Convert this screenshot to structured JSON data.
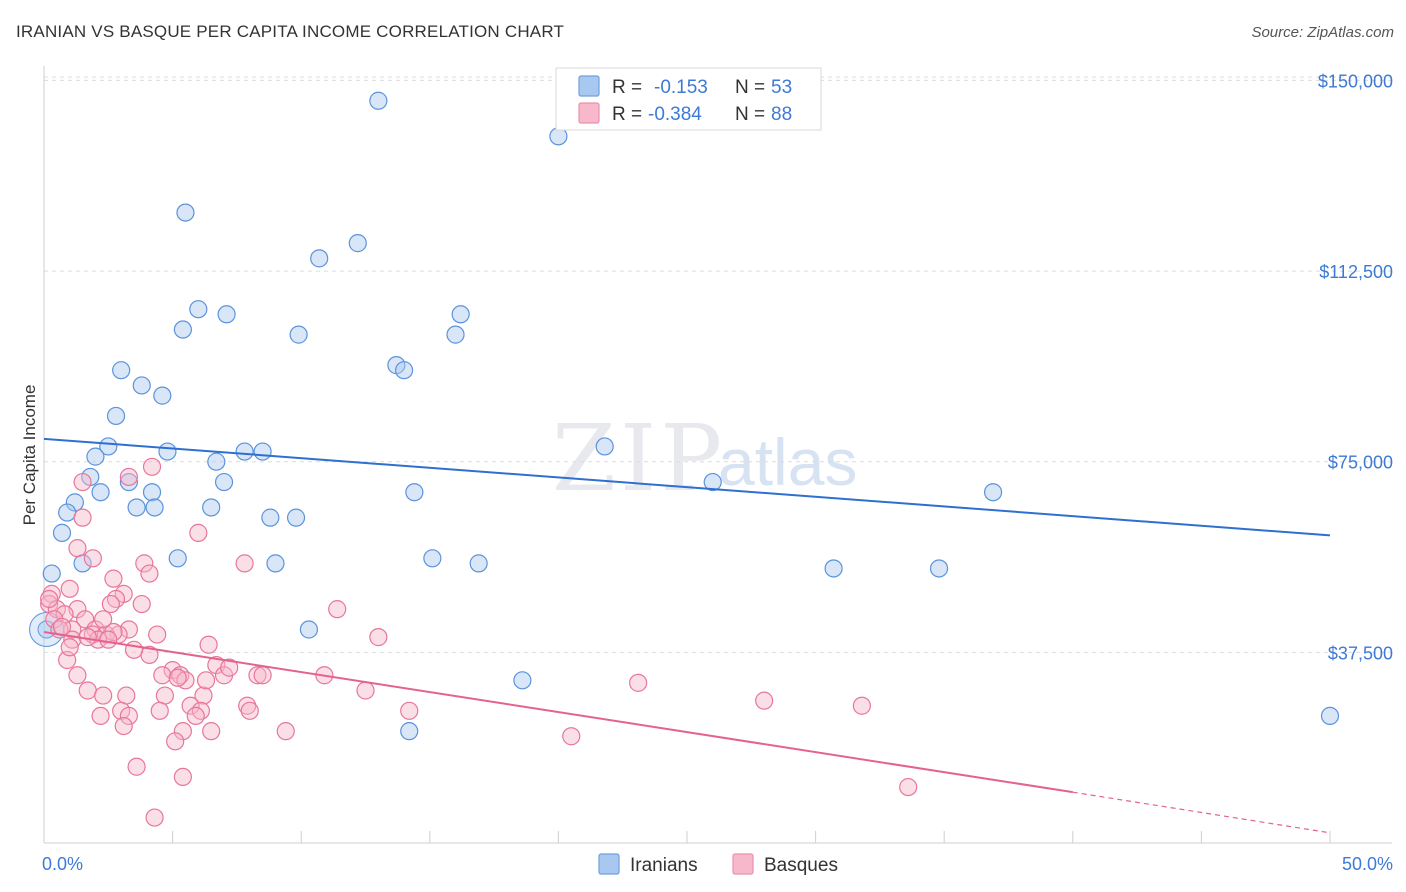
{
  "header": {
    "title": "IRANIAN VS BASQUE PER CAPITA INCOME CORRELATION CHART",
    "source": "Source: ZipAtlas.com"
  },
  "watermark": {
    "part1": "ZIP",
    "part2": "atlas"
  },
  "legend": {
    "r_label": "R =",
    "n_label": "N =",
    "rows": [
      {
        "series": "Iranians",
        "r": "-0.153",
        "n": "53",
        "color": "#a9c8f0"
      },
      {
        "series": "Basques",
        "r": "-0.384",
        "n": "88",
        "color": "#f6b8ca"
      }
    ]
  },
  "chart_data": {
    "type": "scatter",
    "title": "IRANIAN VS BASQUE PER CAPITA INCOME CORRELATION CHART",
    "ylabel": "Per Capita Income",
    "xlabel": "",
    "xlim": [
      0,
      50
    ],
    "ylim": [
      0,
      155000
    ],
    "x_tick_labels": [
      "0.0%",
      "50.0%"
    ],
    "y_ticks": [
      37500,
      75000,
      112500,
      150000
    ],
    "y_tick_labels": [
      "$37,500",
      "$75,000",
      "$112,500",
      "$150,000"
    ],
    "grid": "horizontal dashed",
    "legend_position": "top-center",
    "colors": {
      "Iranians": "#5b93dc",
      "Basques": "#e8769c",
      "iran_line": "#2f6fd0",
      "basque_line": "#e4628f"
    },
    "series": [
      {
        "name": "Iranians",
        "points": [
          [
            13.0,
            146000
          ],
          [
            20.0,
            139000
          ],
          [
            5.5,
            124000
          ],
          [
            10.7,
            115000
          ],
          [
            12.2,
            118000
          ],
          [
            6.0,
            105000
          ],
          [
            7.1,
            104000
          ],
          [
            5.4,
            101000
          ],
          [
            9.9,
            100000
          ],
          [
            16.2,
            104000
          ],
          [
            16.0,
            100000
          ],
          [
            3.0,
            93000
          ],
          [
            13.7,
            94000
          ],
          [
            14.0,
            93000
          ],
          [
            3.8,
            90000
          ],
          [
            4.6,
            88000
          ],
          [
            2.8,
            84000
          ],
          [
            2.5,
            78000
          ],
          [
            4.8,
            77000
          ],
          [
            7.8,
            77000
          ],
          [
            8.5,
            77000
          ],
          [
            2.0,
            76000
          ],
          [
            6.7,
            75000
          ],
          [
            1.8,
            72000
          ],
          [
            3.3,
            71000
          ],
          [
            7.0,
            71000
          ],
          [
            2.2,
            69000
          ],
          [
            4.2,
            69000
          ],
          [
            14.4,
            69000
          ],
          [
            21.8,
            78000
          ],
          [
            26.0,
            71000
          ],
          [
            36.9,
            69000
          ],
          [
            1.2,
            67000
          ],
          [
            3.6,
            66000
          ],
          [
            4.3,
            66000
          ],
          [
            6.5,
            66000
          ],
          [
            0.9,
            65000
          ],
          [
            8.8,
            64000
          ],
          [
            9.8,
            64000
          ],
          [
            0.7,
            61000
          ],
          [
            5.2,
            56000
          ],
          [
            15.1,
            56000
          ],
          [
            9.0,
            55000
          ],
          [
            16.9,
            55000
          ],
          [
            1.5,
            55000
          ],
          [
            30.7,
            54000
          ],
          [
            34.8,
            54000
          ],
          [
            0.3,
            53000
          ],
          [
            10.3,
            42000
          ],
          [
            18.6,
            32000
          ],
          [
            14.2,
            22000
          ],
          [
            50.0,
            25000
          ],
          [
            0.1,
            42000
          ]
        ]
      },
      {
        "name": "Basques",
        "points": [
          [
            4.2,
            74000
          ],
          [
            3.3,
            72000
          ],
          [
            1.5,
            71000
          ],
          [
            1.5,
            64000
          ],
          [
            6.0,
            61000
          ],
          [
            1.3,
            58000
          ],
          [
            1.9,
            56000
          ],
          [
            7.8,
            55000
          ],
          [
            3.9,
            55000
          ],
          [
            4.1,
            53000
          ],
          [
            2.7,
            52000
          ],
          [
            1.0,
            50000
          ],
          [
            0.3,
            49000
          ],
          [
            3.1,
            49000
          ],
          [
            2.8,
            48000
          ],
          [
            2.6,
            47000
          ],
          [
            3.8,
            47000
          ],
          [
            0.2,
            47000
          ],
          [
            0.5,
            46000
          ],
          [
            1.3,
            46000
          ],
          [
            11.4,
            46000
          ],
          [
            0.8,
            45000
          ],
          [
            0.4,
            44000
          ],
          [
            1.6,
            44000
          ],
          [
            1.1,
            42000
          ],
          [
            2.0,
            42000
          ],
          [
            0.6,
            42000
          ],
          [
            3.3,
            42000
          ],
          [
            2.9,
            41000
          ],
          [
            1.9,
            41000
          ],
          [
            2.4,
            41000
          ],
          [
            13.0,
            40500
          ],
          [
            1.1,
            40000
          ],
          [
            2.1,
            40000
          ],
          [
            4.1,
            37000
          ],
          [
            0.9,
            36000
          ],
          [
            6.7,
            35000
          ],
          [
            5.0,
            34000
          ],
          [
            4.6,
            33000
          ],
          [
            8.3,
            33000
          ],
          [
            5.3,
            33000
          ],
          [
            7.0,
            33000
          ],
          [
            10.9,
            33000
          ],
          [
            5.5,
            32000
          ],
          [
            23.1,
            31500
          ],
          [
            1.7,
            30000
          ],
          [
            12.5,
            30000
          ],
          [
            3.2,
            29000
          ],
          [
            4.7,
            29000
          ],
          [
            6.2,
            29000
          ],
          [
            2.3,
            29000
          ],
          [
            28.0,
            28000
          ],
          [
            7.9,
            27000
          ],
          [
            5.7,
            27000
          ],
          [
            6.1,
            26000
          ],
          [
            4.5,
            26000
          ],
          [
            8.0,
            26000
          ],
          [
            3.0,
            26000
          ],
          [
            14.2,
            26000
          ],
          [
            2.2,
            25000
          ],
          [
            3.3,
            25000
          ],
          [
            5.9,
            25000
          ],
          [
            3.1,
            23000
          ],
          [
            5.4,
            22000
          ],
          [
            6.5,
            22000
          ],
          [
            9.4,
            22000
          ],
          [
            20.5,
            21000
          ],
          [
            5.1,
            20000
          ],
          [
            3.6,
            15000
          ],
          [
            5.4,
            13000
          ],
          [
            33.6,
            11000
          ],
          [
            4.3,
            5000
          ],
          [
            31.8,
            27000
          ],
          [
            5.2,
            32500
          ],
          [
            7.2,
            34500
          ],
          [
            8.5,
            33000
          ],
          [
            1.3,
            33000
          ],
          [
            6.3,
            32000
          ],
          [
            1.7,
            40500
          ],
          [
            1.0,
            38500
          ],
          [
            2.7,
            41500
          ],
          [
            4.4,
            41000
          ],
          [
            2.5,
            40000
          ],
          [
            0.7,
            42500
          ],
          [
            0.2,
            48000
          ],
          [
            2.3,
            44000
          ],
          [
            3.5,
            38000
          ],
          [
            6.4,
            39000
          ]
        ]
      }
    ],
    "trend_lines": [
      {
        "series": "Iranians",
        "x": [
          0,
          50
        ],
        "y": [
          79500,
          60500
        ]
      },
      {
        "series": "Basques",
        "x": [
          0,
          40
        ],
        "y": [
          41500,
          10000
        ],
        "dashed_extension_to": [
          50,
          2000
        ]
      }
    ]
  },
  "bottom_legend": {
    "items": [
      "Iranians",
      "Basques"
    ]
  }
}
